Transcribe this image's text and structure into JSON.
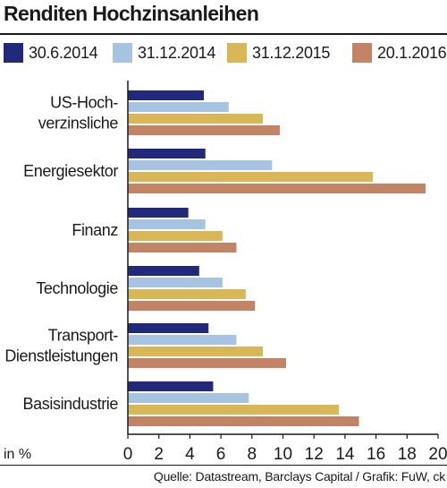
{
  "header": {
    "title": "Renditen Hochzinsanleihen"
  },
  "footer": {
    "source": "Quelle: Datastream, Barclays Capital / Grafik: FuW, ck"
  },
  "chart_data": {
    "type": "bar",
    "orientation": "horizontal",
    "title": "Renditen Hochzinsanleihen",
    "xlabel": "in %",
    "xlim": [
      0,
      20
    ],
    "xticks": [
      0,
      2,
      4,
      6,
      8,
      10,
      12,
      14,
      16,
      18,
      20
    ],
    "legend_position": "top",
    "categories": [
      [
        "US-Hoch-",
        "verzinsliche"
      ],
      [
        "Energiesektor"
      ],
      [
        "Finanz"
      ],
      [
        "Technologie"
      ],
      [
        "Transport-",
        "Dienstleistungen"
      ],
      [
        "Basisindustrie"
      ]
    ],
    "series": [
      {
        "name": "30.6.2014",
        "color": "#23297a",
        "values": [
          4.9,
          5.0,
          3.9,
          4.6,
          5.2,
          5.5
        ]
      },
      {
        "name": "31.12.2014",
        "color": "#a7c3e2",
        "values": [
          6.5,
          9.3,
          5.0,
          6.1,
          7.0,
          7.8
        ]
      },
      {
        "name": "31.12.2015",
        "color": "#d9b756",
        "values": [
          8.7,
          15.8,
          6.1,
          7.6,
          8.7,
          13.6
        ]
      },
      {
        "name": "20.1.2016",
        "color": "#c28464",
        "values": [
          9.8,
          19.2,
          7.0,
          8.2,
          10.2,
          14.9
        ]
      }
    ]
  }
}
